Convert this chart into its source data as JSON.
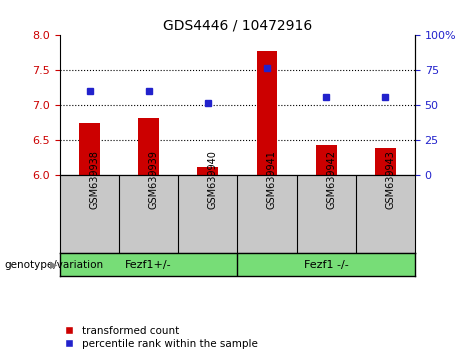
{
  "title": "GDS4446 / 10472916",
  "samples": [
    "GSM639938",
    "GSM639939",
    "GSM639940",
    "GSM639941",
    "GSM639942",
    "GSM639943"
  ],
  "bar_values": [
    6.75,
    6.82,
    6.12,
    7.78,
    6.43,
    6.39
  ],
  "bar_baseline": 6.0,
  "bar_color": "#cc0000",
  "dot_values": [
    60,
    60,
    52,
    77,
    56,
    56
  ],
  "dot_color": "#2222cc",
  "left_ylim": [
    6.0,
    8.0
  ],
  "left_yticks": [
    6.0,
    6.5,
    7.0,
    7.5,
    8.0
  ],
  "right_ylim": [
    0,
    100
  ],
  "right_yticks": [
    0,
    25,
    50,
    75,
    100
  ],
  "right_yticklabels": [
    "0",
    "25",
    "50",
    "75",
    "100%"
  ],
  "hgrid_values": [
    6.5,
    7.0,
    7.5
  ],
  "group1_label": "Fezf1+/-",
  "group2_label": "Fezf1 -/-",
  "group_color": "#77dd77",
  "label_area_color": "#c8c8c8",
  "legend_red_label": "transformed count",
  "legend_blue_label": "percentile rank within the sample",
  "genotype_label": "genotype/variation",
  "bar_width": 0.35
}
